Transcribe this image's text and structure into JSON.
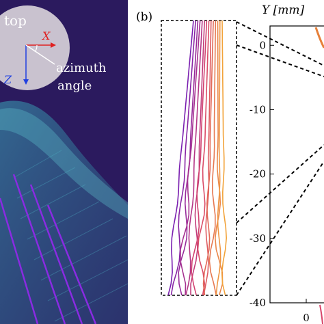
{
  "panel_a": {
    "view_label": "top",
    "axis_x_label": "X",
    "axis_z_label": "Z",
    "angle_label_line1": "azimuth",
    "angle_label_line2": "angle",
    "colors": {
      "background": "#2b1a5e",
      "disc": "#c9c2cf",
      "axis_x": "#e02020",
      "axis_z": "#2040e0"
    }
  },
  "panel_b": {
    "label": "(b)",
    "colors": {
      "frame": "#000000",
      "strand_warm": "#f2a33a",
      "strand_mid": "#d8456b",
      "strand_cool": "#7a1fb0"
    }
  },
  "chart_data": {
    "type": "line",
    "ylabel": "Y [mm]",
    "yticks": [
      "0",
      "-10",
      "-20",
      "-30",
      "-40"
    ],
    "ylim": [
      -40,
      3
    ],
    "xticks_visible": [
      "0"
    ]
  }
}
